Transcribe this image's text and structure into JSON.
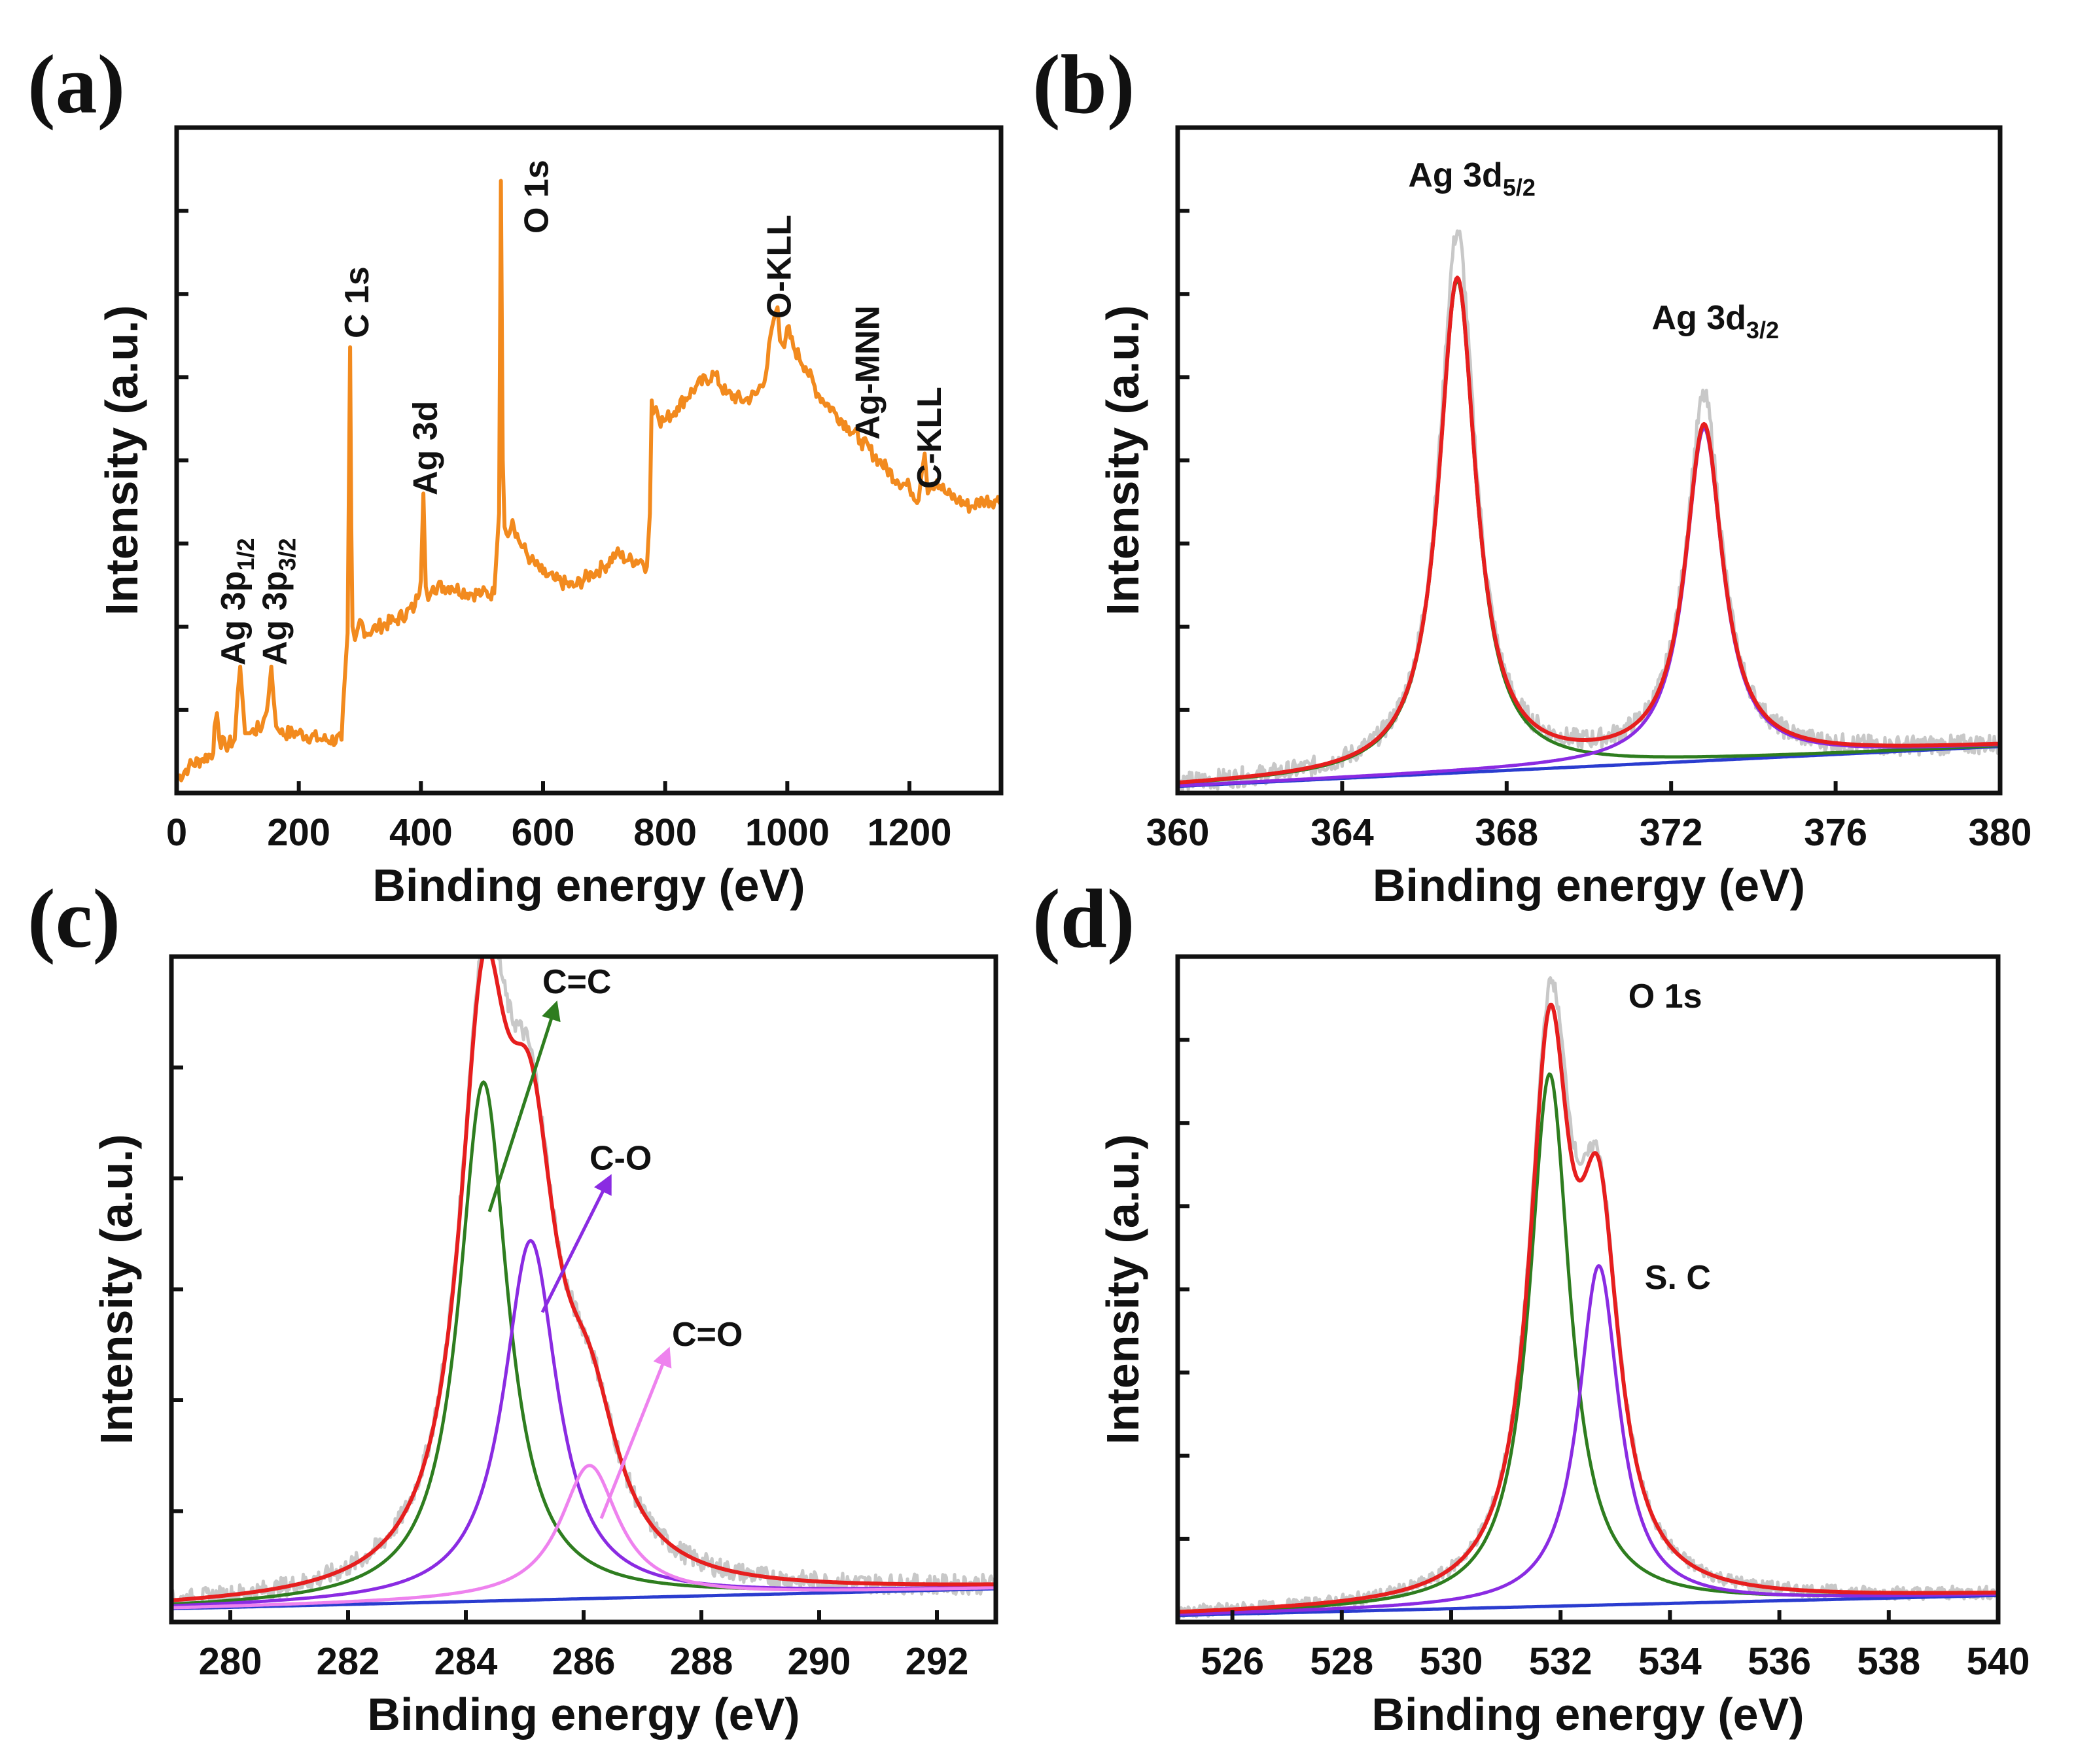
{
  "figure": {
    "panels": [
      {
        "id": "a",
        "label": "(a)",
        "xlabel": "Binding energy (eV)",
        "ylabel": "Intensity (a.u.)",
        "xlim": [
          0,
          1350
        ],
        "ylim": [
          0,
          100
        ],
        "xticks": [
          0,
          200,
          400,
          600,
          800,
          1000,
          1200
        ],
        "ytick_count": 7,
        "chart_data": {
          "type": "line",
          "title": "",
          "series": [
            {
              "name": "survey",
              "color": "#F28A1E",
              "x": [
                0,
                20,
                40,
                60,
                62,
                66,
                70,
                80,
                95,
                100,
                104,
                108,
                112,
                120,
                140,
                150,
                155,
                159,
                163,
                170,
                200,
                240,
                270,
                280,
                284,
                286,
                288,
                292,
                300,
                310,
                330,
                360,
                390,
                400,
                404,
                406,
                408,
                412,
                420,
                450,
                480,
                500,
                520,
                528,
                531,
                534,
                537,
                540,
                550,
                560,
                580,
                600,
                620,
                650,
                680,
                700,
                720,
                740,
                760,
                770,
                775,
                778,
                780,
                785,
                790,
                800,
                820,
                850,
                880,
                900,
                930,
                950,
                965,
                975,
                980,
                984,
                988,
                995,
                1000,
                1010,
                1030,
                1050,
                1080,
                1100,
                1120,
                1150,
                1180,
                1200,
                1215,
                1220,
                1225,
                1230,
                1235,
                1245,
                1260,
                1280,
                1300,
                1320,
                1340,
                1350
              ],
              "y": [
                2,
                4,
                5,
                6,
                10,
                12,
                8,
                7,
                8,
                15,
                19,
                14,
                9,
                9,
                10,
                14,
                19,
                14,
                10,
                9,
                9,
                8,
                8,
                24,
                67,
                40,
                25,
                23,
                26,
                24,
                25,
                26,
                28,
                32,
                45,
                38,
                31,
                29,
                31,
                31,
                30,
                30,
                30,
                42,
                92,
                50,
                40,
                39,
                41,
                38,
                35,
                33,
                32,
                31,
                33,
                34,
                36,
                35,
                35,
                34,
                42,
                59,
                57,
                58,
                56,
                56,
                58,
                61,
                63,
                60,
                59,
                60,
                63,
                70,
                72,
                73,
                68,
                67,
                70,
                67,
                64,
                60,
                57,
                55,
                53,
                50,
                47,
                46,
                44,
                48,
                51,
                45,
                46,
                47,
                45,
                44,
                43,
                44,
                44,
                44
              ]
            }
          ],
          "annotations": [
            {
              "text": "Ag 3p",
              "sub": "1/2",
              "x": 103
            },
            {
              "text": "Ag 3p",
              "sub": "3/2",
              "x": 158
            },
            {
              "text": "C 1s",
              "x": 284
            },
            {
              "text": "Ag 3d",
              "x": 400
            },
            {
              "text": "O 1s",
              "x": 531
            },
            {
              "text": "O-KLL",
              "x": 980
            },
            {
              "text": "Ag-MNN",
              "x": 1120
            },
            {
              "text": "C-KLL",
              "x": 1230
            }
          ]
        }
      },
      {
        "id": "b",
        "label": "(b)",
        "xlabel": "Binding energy (eV)",
        "ylabel": "Intensity (a.u.)",
        "xlim": [
          360,
          380
        ],
        "ylim": [
          0,
          100
        ],
        "xticks": [
          360,
          364,
          368,
          372,
          376,
          380
        ],
        "ytick_count": 7,
        "chart_data": {
          "type": "line",
          "background": {
            "y0": 1,
            "y1": 7
          },
          "peaks": [
            {
              "name": "Ag 3d5/2",
              "color": "#2E7D1F",
              "center": 366.8,
              "height": 74,
              "width": 0.55
            },
            {
              "name": "Ag 3d3/2",
              "color": "#8A2BE2",
              "center": 372.8,
              "height": 50,
              "width": 0.55
            }
          ],
          "series": [
            {
              "name": "raw",
              "color": "#C8C8C8",
              "noise": 1.5
            },
            {
              "name": "envelope",
              "color": "#E61E1E"
            },
            {
              "name": "background",
              "color": "#2A3CCF"
            }
          ],
          "raw_peak_tops": [
            {
              "x": 366.8,
              "y": 84
            },
            {
              "x": 372.8,
              "y": 59
            }
          ],
          "annotations": [
            {
              "text": "Ag 3d",
              "sub": "5/2",
              "x": 366.8
            },
            {
              "text": "Ag 3d",
              "sub": "3/2",
              "x": 372.8
            }
          ]
        }
      },
      {
        "id": "c",
        "label": "(c)",
        "xlabel": "Binding energy (eV)",
        "ylabel": "Intensity (a.u.)",
        "xlim": [
          279,
          293
        ],
        "ylim": [
          0,
          100
        ],
        "xticks": [
          280,
          282,
          284,
          286,
          288,
          290,
          292
        ],
        "ytick_count": 5,
        "chart_data": {
          "type": "line",
          "background": {
            "y0": 2,
            "y1": 5
          },
          "peaks": [
            {
              "name": "C=C",
              "color": "#2E7D1F",
              "center": 284.3,
              "height": 78,
              "width": 0.5
            },
            {
              "name": "C-O",
              "color": "#8A2BE2",
              "center": 285.1,
              "height": 54,
              "width": 0.55
            },
            {
              "name": "C=O",
              "color": "#EE82EE",
              "center": 286.1,
              "height": 20,
              "width": 0.6
            }
          ],
          "series": [
            {
              "name": "raw",
              "color": "#C8C8C8",
              "noise": 1.5
            },
            {
              "name": "envelope",
              "color": "#E61E1E"
            },
            {
              "name": "background",
              "color": "#2A3CCF"
            }
          ],
          "annotations": [
            {
              "text": "C=C",
              "x": 286.0,
              "color": "#2E7D1F"
            },
            {
              "text": "C-O",
              "x": 286.9,
              "color": "#8A2BE2"
            },
            {
              "text": "C=O",
              "x": 288.0,
              "color": "#EE82EE"
            }
          ]
        }
      },
      {
        "id": "d",
        "label": "(d)",
        "xlabel": "Binding energy (eV)",
        "ylabel": "Intensity (a.u.)",
        "xlim": [
          525,
          540
        ],
        "ylim": [
          0,
          100
        ],
        "xticks": [
          526,
          528,
          530,
          532,
          534,
          536,
          538,
          540
        ],
        "ytick_count": 7,
        "chart_data": {
          "type": "line",
          "background": {
            "y0": 1,
            "y1": 4
          },
          "peaks": [
            {
              "name": "O 1s",
              "color": "#2E7D1F",
              "center": 531.8,
              "height": 80,
              "width": 0.45
            },
            {
              "name": "S. C",
              "color": "#8A2BE2",
              "center": 532.7,
              "height": 51,
              "width": 0.45
            }
          ],
          "series": [
            {
              "name": "raw",
              "color": "#C8C8C8",
              "noise": 1.0
            },
            {
              "name": "envelope",
              "color": "#E61E1E"
            },
            {
              "name": "background",
              "color": "#2A3CCF"
            }
          ],
          "annotations": [
            {
              "text": "O 1s",
              "x": 533.0
            },
            {
              "text": "S. C",
              "x": 533.0
            }
          ]
        }
      }
    ]
  }
}
